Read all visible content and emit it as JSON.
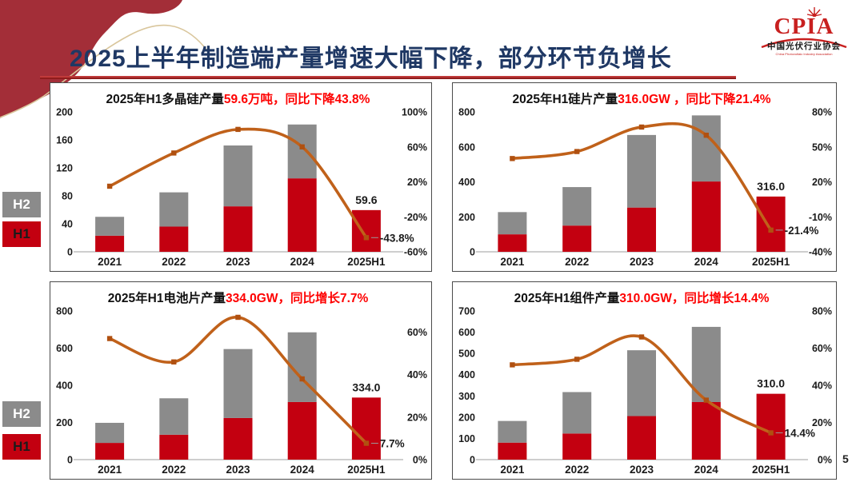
{
  "slide": {
    "title": "2025上半年制造端产量增速大幅下降，部分环节负增长",
    "page_number": "5"
  },
  "logo": {
    "text": "CPIA",
    "cn": "中国光伏行业协会",
    "en": "China Photovoltaic Industry Association"
  },
  "legend": {
    "h2_label": "H2",
    "h1_label": "H1"
  },
  "colors": {
    "h1_bar": "#c30010",
    "h2_bar": "#8b8b8b",
    "line": "#c0611a",
    "marker": "#b05010",
    "title_navy": "#1f3864",
    "highlight_red": "#fe0000",
    "axis_text": "#1a1a1a",
    "axis_line": "#b0b0b0",
    "connector": "#9a9a9a"
  },
  "chart_data": [
    {
      "type": "bar+line",
      "panel": "top-left",
      "title_prefix": "2025年H1多晶硅产量",
      "title_highlight": "59.6万吨，同比下降43.8%",
      "categories": [
        "2021",
        "2022",
        "2023",
        "2024",
        "2025H1"
      ],
      "series": [
        {
          "name": "H1",
          "values": [
            23,
            36,
            65,
            105,
            59.6
          ]
        },
        {
          "name": "H2",
          "values": [
            27,
            49,
            87,
            77,
            null
          ]
        }
      ],
      "yoy_line_percent": [
        15,
        53,
        80,
        60,
        -43.8
      ],
      "left_axis": {
        "ticks": [
          0,
          40,
          80,
          120,
          160,
          200
        ],
        "max": 200
      },
      "right_axis": {
        "ticks": [
          100,
          60,
          20,
          -20,
          -60
        ],
        "min": -60,
        "max": 100
      },
      "bar_value_label": "59.6",
      "line_value_label": "-43.8%"
    },
    {
      "type": "bar+line",
      "panel": "top-right",
      "title_prefix": "2025年H1硅片产量",
      "title_highlight": "316.0GW ，同比下降21.4%",
      "categories": [
        "2021",
        "2022",
        "2023",
        "2024",
        "2025H1"
      ],
      "series": [
        {
          "name": "H1",
          "values": [
            100,
            150,
            253,
            402,
            316
          ]
        },
        {
          "name": "H2",
          "values": [
            127,
            220,
            415,
            378,
            null
          ]
        }
      ],
      "yoy_line_percent": [
        40,
        46,
        67,
        60,
        -21.4
      ],
      "left_axis": {
        "ticks": [
          0,
          200,
          400,
          600,
          800
        ],
        "max": 800
      },
      "right_axis": {
        "ticks": [
          80,
          50,
          20,
          -10,
          -40
        ],
        "min": -40,
        "max": 80
      },
      "bar_value_label": "316.0",
      "line_value_label": "-21.4%"
    },
    {
      "type": "bar+line",
      "panel": "bottom-left",
      "title_prefix": "2025年H1电池片产量",
      "title_highlight": "334.0GW，同比增长7.7%",
      "categories": [
        "2021",
        "2022",
        "2023",
        "2024",
        "2025H1"
      ],
      "series": [
        {
          "name": "H1",
          "values": [
            90,
            134,
            224,
            310,
            334
          ]
        },
        {
          "name": "H2",
          "values": [
            108,
            196,
            371,
            375,
            null
          ]
        }
      ],
      "yoy_line_percent": [
        57,
        46,
        67,
        38,
        7.7
      ],
      "left_axis": {
        "ticks": [
          0,
          200,
          400,
          600,
          800
        ],
        "max": 800
      },
      "right_axis": {
        "ticks": [
          60,
          40,
          20,
          0
        ],
        "min": 0,
        "max": 70
      },
      "bar_value_label": "334.0",
      "line_value_label": "7.7%"
    },
    {
      "type": "bar+line",
      "panel": "bottom-right",
      "title_prefix": "2025年H1组件产量",
      "title_highlight": "310.0GW，同比增长14.4%",
      "categories": [
        "2021",
        "2022",
        "2023",
        "2024",
        "2025H1"
      ],
      "series": [
        {
          "name": "H1",
          "values": [
            80,
            123,
            205,
            271,
            310
          ]
        },
        {
          "name": "H2",
          "values": [
            102,
            195,
            310,
            354,
            null
          ]
        }
      ],
      "yoy_line_percent": [
        51,
        54,
        66,
        32,
        14.4
      ],
      "left_axis": {
        "ticks": [
          0,
          100,
          200,
          300,
          400,
          500,
          600,
          700
        ],
        "max": 700
      },
      "right_axis": {
        "ticks": [
          80,
          60,
          40,
          20,
          0
        ],
        "min": 0,
        "max": 80
      },
      "bar_value_label": "310.0",
      "line_value_label": "14.4%"
    }
  ]
}
